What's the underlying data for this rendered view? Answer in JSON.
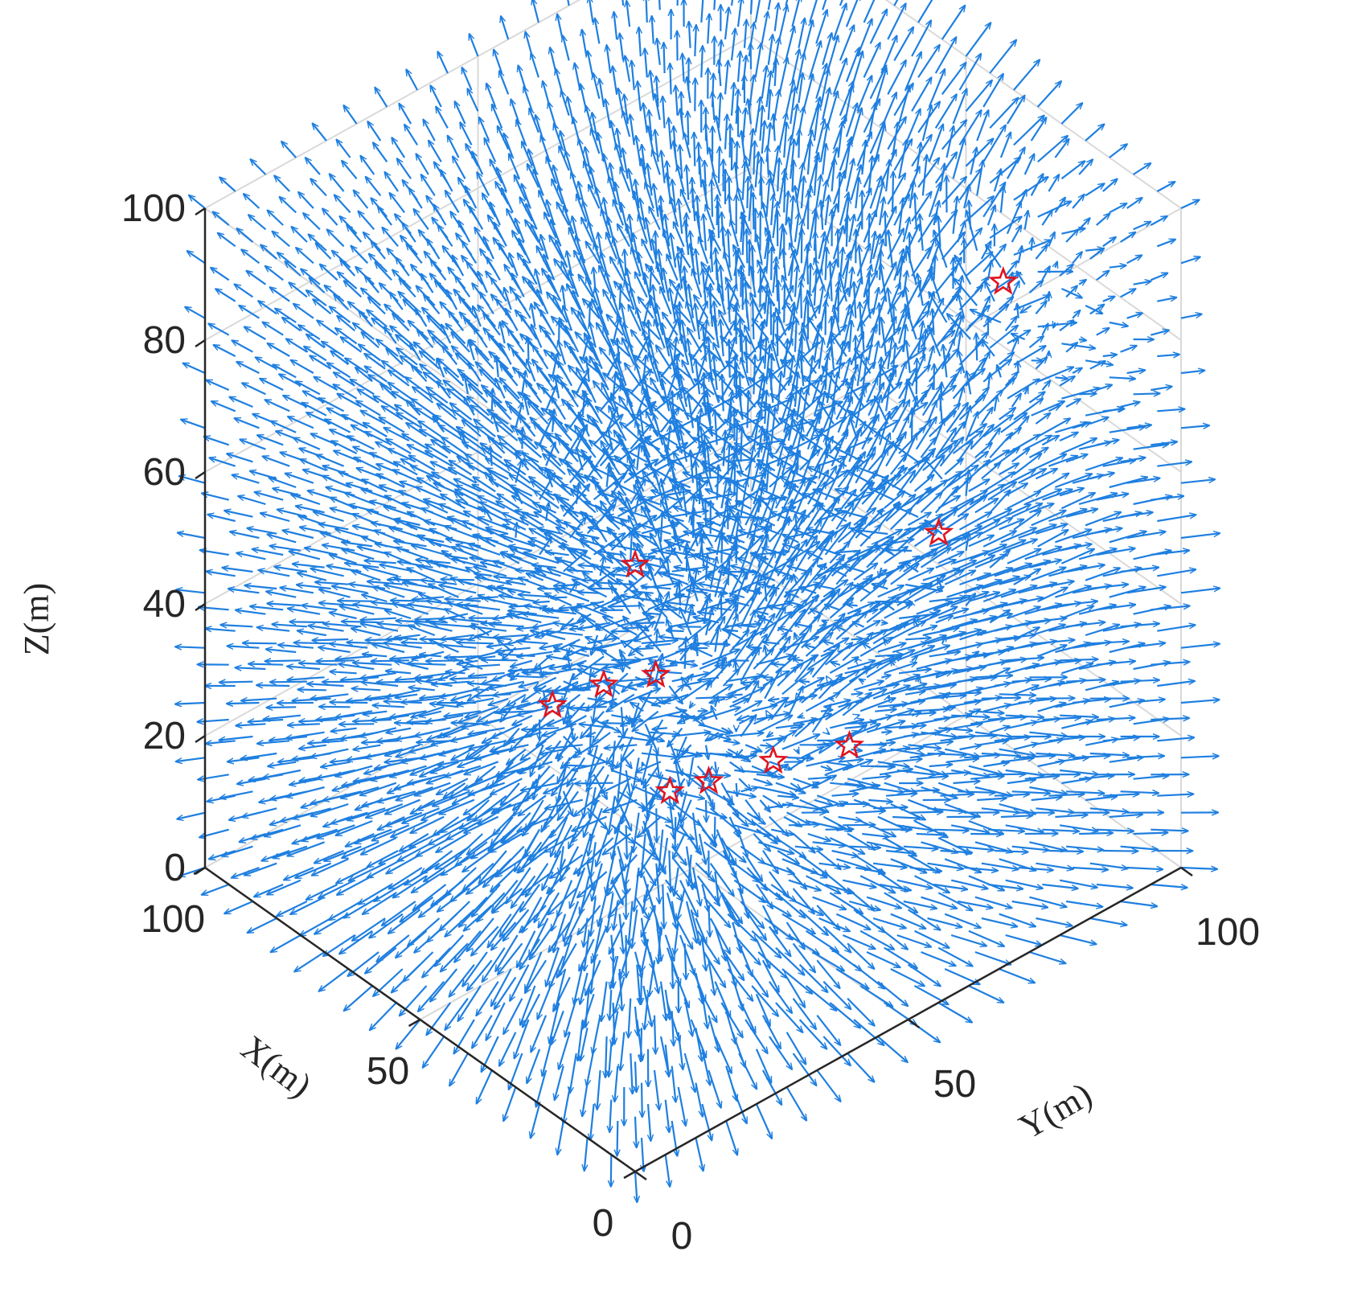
{
  "chart_data": {
    "type": "quiver3",
    "title": "",
    "xlabel": "X(m)",
    "ylabel": "Y(m)",
    "zlabel": "Z(m)",
    "xlim": [
      0,
      100
    ],
    "ylim": [
      0,
      100
    ],
    "zlim": [
      0,
      100
    ],
    "x_ticks": [
      "0",
      "50",
      "100"
    ],
    "y_ticks": [
      "0",
      "50",
      "100"
    ],
    "z_ticks": [
      "0",
      "20",
      "40",
      "60",
      "80",
      "100"
    ],
    "grid": true,
    "box": "3d",
    "colors": {
      "arrows": "#1f7fe0",
      "markers": "#e0141e",
      "axes": "#262626",
      "grid": "#d9d9d9"
    },
    "markers": [
      {
        "symbol": "star",
        "x": 0,
        "y": 0,
        "z": 92
      },
      {
        "symbol": "star",
        "x": 20,
        "y": 10,
        "z": 60
      },
      {
        "symbol": "star",
        "x": 30,
        "y": 30,
        "z": 30
      },
      {
        "symbol": "star",
        "x": 25,
        "y": 45,
        "z": 30
      },
      {
        "symbol": "star",
        "x": 20,
        "y": 55,
        "z": 30
      },
      {
        "symbol": "star",
        "x": 40,
        "y": 45,
        "z": 20
      },
      {
        "symbol": "star",
        "x": 35,
        "y": 95,
        "z": 75
      },
      {
        "symbol": "star",
        "x": 50,
        "y": 95,
        "z": 30
      },
      {
        "symbol": "star",
        "x": 70,
        "y": 40,
        "z": 20
      },
      {
        "symbol": "star",
        "x": 65,
        "y": 55,
        "z": 20
      }
    ]
  }
}
